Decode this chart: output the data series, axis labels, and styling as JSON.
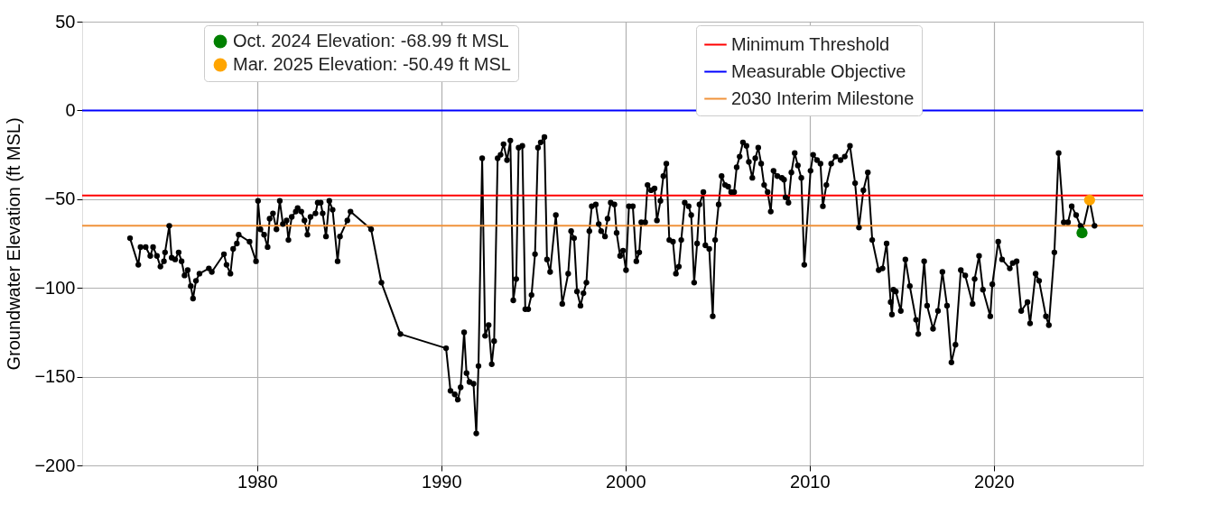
{
  "chart_data": {
    "type": "line",
    "ylabel": "Groundwater Elevation (ft MSL)",
    "xlim": [
      1970.5,
      2028.1
    ],
    "xticks": [
      1980,
      1990,
      2000,
      2010,
      2020
    ],
    "ylim": [
      -200,
      50
    ],
    "yticks": [
      {
        "value": -200,
        "label": "−200"
      },
      {
        "value": -150,
        "label": "−150"
      },
      {
        "value": -100,
        "label": "−100"
      },
      {
        "value": -50,
        "label": "−50"
      },
      0,
      50
    ],
    "grid": true,
    "legend": "top",
    "series": [
      {
        "color": "#000000",
        "marker": "circle",
        "line_style": "solid",
        "x": [
          1973.1,
          1973.55,
          1973.67,
          1973.95,
          1974.2,
          1974.35,
          1974.56,
          1974.75,
          1974.94,
          1975.0,
          1975.23,
          1975.36,
          1975.55,
          1975.74,
          1975.9,
          1976.06,
          1976.23,
          1976.4,
          1976.52,
          1976.68,
          1976.87,
          1977.38,
          1977.54,
          1978.2,
          1978.34,
          1978.55,
          1978.7,
          1978.9,
          1979.0,
          1979.59,
          1979.94,
          1980.05,
          1980.18,
          1980.38,
          1980.57,
          1980.68,
          1980.86,
          1981.05,
          1981.23,
          1981.4,
          1981.6,
          1981.7,
          1981.88,
          1982.1,
          1982.2,
          1982.4,
          1982.57,
          1982.73,
          1982.9,
          1983.17,
          1983.29,
          1983.45,
          1983.56,
          1983.74,
          1983.92,
          1984.1,
          1984.37,
          1984.5,
          1984.9,
          1985.07,
          1986.19,
          1986.75,
          1987.78,
          1990.26,
          1990.5,
          1990.73,
          1990.9,
          1991.05,
          1991.24,
          1991.37,
          1991.53,
          1991.75,
          1991.9,
          1992.02,
          1992.22,
          1992.38,
          1992.57,
          1992.74,
          1992.87,
          1993.06,
          1993.22,
          1993.38,
          1993.57,
          1993.75,
          1993.91,
          1994.07,
          1994.2,
          1994.4,
          1994.56,
          1994.72,
          1994.9,
          1995.09,
          1995.25,
          1995.4,
          1995.6,
          1995.74,
          1995.91,
          1996.22,
          1996.57,
          1996.89,
          1997.05,
          1997.21,
          1997.37,
          1997.56,
          1997.72,
          1997.88,
          1998.04,
          1998.17,
          1998.39,
          1998.55,
          1998.68,
          1998.89,
          1999.03,
          1999.2,
          1999.4,
          1999.52,
          1999.71,
          1999.87,
          2000.03,
          2000.19,
          2000.4,
          2000.59,
          2000.75,
          2000.86,
          2001.07,
          2001.2,
          2001.39,
          2001.58,
          2001.71,
          2001.9,
          2002.06,
          2002.22,
          2002.38,
          2002.58,
          2002.74,
          2002.9,
          2003.03,
          2003.22,
          2003.43,
          2003.57,
          2003.73,
          2003.89,
          2004.02,
          2004.23,
          2004.34,
          2004.55,
          2004.74,
          2004.87,
          2005.06,
          2005.22,
          2005.41,
          2005.58,
          2005.74,
          2005.9,
          2006.04,
          2006.2,
          2006.38,
          2006.57,
          2006.7,
          2006.89,
          2007.05,
          2007.21,
          2007.37,
          2007.53,
          2007.72,
          2007.89,
          2008.04,
          2008.25,
          2008.49,
          2008.61,
          2008.69,
          2008.85,
          2009.01,
          2009.19,
          2009.36,
          2009.55,
          2009.71,
          2010.05,
          2010.19,
          2010.4,
          2010.59,
          2010.72,
          2010.91,
          2011.17,
          2011.41,
          2011.68,
          2011.91,
          2012.19,
          2012.47,
          2012.68,
          2012.92,
          2013.16,
          2013.4,
          2013.75,
          2013.96,
          2014.18,
          2014.4,
          2014.47,
          2014.55,
          2014.68,
          2014.95,
          2015.2,
          2015.44,
          2015.78,
          2015.9,
          2016.22,
          2016.38,
          2016.7,
          2016.97,
          2017.21,
          2017.46,
          2017.7,
          2017.92,
          2018.21,
          2018.45,
          2018.85,
          2018.96,
          2019.2,
          2019.41,
          2019.81,
          2019.92,
          2020.24,
          2020.45,
          2020.87,
          2021.03,
          2021.24,
          2021.49,
          2021.83,
          2021.97,
          2022.27,
          2022.46,
          2022.83,
          2022.99,
          2023.29,
          2023.52,
          2023.8,
          2024.03,
          2024.23,
          2024.47,
          2024.71,
          2024.79,
          2025.2,
          2025.47
        ],
        "values": [
          -72,
          -87,
          -77,
          -77,
          -82,
          -77,
          -82,
          -88,
          -85,
          -80,
          -65,
          -83,
          -84,
          -80,
          -85,
          -93,
          -90,
          -99,
          -106,
          -96,
          -92,
          -89,
          -91,
          -81,
          -87,
          -92,
          -78,
          -75,
          -70,
          -74,
          -85,
          -51,
          -67,
          -70,
          -77,
          -61,
          -58,
          -67,
          -51,
          -64,
          -62,
          -73,
          -60,
          -57,
          -55,
          -57,
          -62,
          -70,
          -60,
          -58,
          -52,
          -52,
          -58,
          -71,
          -51,
          -56,
          -85,
          -71,
          -62,
          -57,
          -67,
          -97,
          -126,
          -134,
          -158,
          -160,
          -163,
          -156,
          -125,
          -148,
          -153,
          -154,
          -182,
          -144,
          -27,
          -127,
          -121,
          -143,
          -130,
          -27,
          -25,
          -19,
          -28,
          -17,
          -107,
          -95,
          -21,
          -20,
          -112,
          -112,
          -104,
          -81,
          -21,
          -18,
          -15,
          -84,
          -91,
          -59,
          -109,
          -92,
          -68,
          -72,
          -102,
          -110,
          -103,
          -97,
          -68,
          -54,
          -53,
          -64,
          -68,
          -71,
          -61,
          -52,
          -53,
          -69,
          -82,
          -79,
          -90,
          -54,
          -54,
          -85,
          -80,
          -63,
          -63,
          -42,
          -45,
          -44,
          -62,
          -51,
          -37,
          -30,
          -73,
          -74,
          -92,
          -88,
          -73,
          -52,
          -54,
          -59,
          -97,
          -75,
          -53,
          -46,
          -76,
          -78,
          -116,
          -73,
          -53,
          -37,
          -42,
          -43,
          -46,
          -46,
          -32,
          -26,
          -18,
          -20,
          -29,
          -38,
          -27,
          -21,
          -30,
          -42,
          -46,
          -57,
          -34,
          -37,
          -38,
          -39,
          -49,
          -52,
          -35,
          -24,
          -31,
          -38,
          -87,
          -34,
          -25,
          -28,
          -30,
          -54,
          -42,
          -30,
          -26,
          -28,
          -26,
          -20,
          -41,
          -66,
          -45,
          -35,
          -73,
          -90,
          -89,
          -75,
          -108,
          -115,
          -101,
          -102,
          -113,
          -84,
          -99,
          -118,
          -126,
          -85,
          -110,
          -123,
          -113,
          -91,
          -110,
          -142,
          -132,
          -90,
          -93,
          -109,
          -95,
          -82,
          -101,
          -116,
          -98,
          -74,
          -84,
          -89,
          -86,
          -85,
          -113,
          -108,
          -120,
          -92,
          -96,
          -116,
          -121,
          -80,
          -24,
          -63,
          -63,
          -54,
          -59,
          -65,
          -69,
          -50.5,
          -65
        ]
      },
      {
        "type": "scatter",
        "name": "Oct. 2024 Elevation: -68.99 ft MSL",
        "color": "#008000",
        "marker": "circle",
        "x": [
          2024.79
        ],
        "values": [
          -68.99
        ]
      },
      {
        "type": "scatter",
        "name": "Mar. 2025 Elevation: -50.49 ft MSL",
        "color": "#ffa500",
        "marker": "circle",
        "x": [
          2025.2
        ],
        "values": [
          -50.49
        ]
      }
    ],
    "ref_lines": [
      {
        "axis": "y",
        "value": -48,
        "label": "Minimum Threshold",
        "color": "#ff0000"
      },
      {
        "axis": "y",
        "value": 0,
        "label": "Measurable Objective",
        "color": "#0000ff"
      },
      {
        "axis": "y",
        "value": -65,
        "label": "2030 Interim Milestone",
        "color": "#f0923a"
      }
    ]
  }
}
